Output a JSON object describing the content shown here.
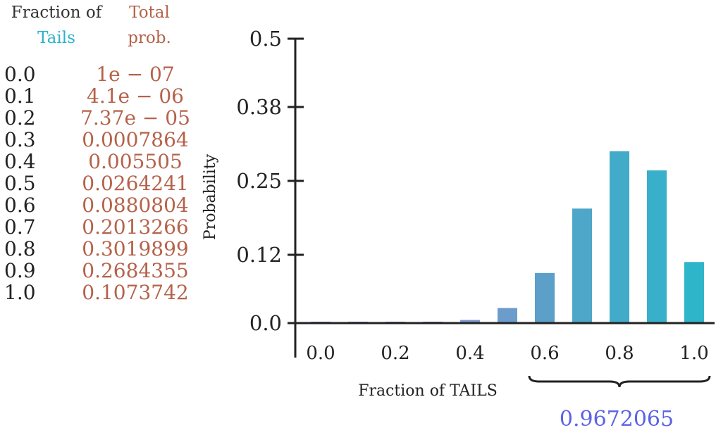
{
  "table": {
    "header_fraction": [
      "Fraction of",
      "Tails"
    ],
    "header_prob": [
      "Total",
      "prob."
    ],
    "rows": [
      {
        "fraction": "0.0",
        "prob": "1e − 07"
      },
      {
        "fraction": "0.1",
        "prob": "4.1e − 06"
      },
      {
        "fraction": "0.2",
        "prob": "7.37e − 05"
      },
      {
        "fraction": "0.3",
        "prob": "0.0007864"
      },
      {
        "fraction": "0.4",
        "prob": "0.005505"
      },
      {
        "fraction": "0.5",
        "prob": "0.0264241"
      },
      {
        "fraction": "0.6",
        "prob": "0.0880804"
      },
      {
        "fraction": "0.7",
        "prob": "0.2013266"
      },
      {
        "fraction": "0.8",
        "prob": "0.3019899"
      },
      {
        "fraction": "0.9",
        "prob": "0.2684355"
      },
      {
        "fraction": "1.0",
        "prob": "0.1073742"
      }
    ]
  },
  "chart_data": {
    "type": "bar",
    "x": [
      0.0,
      0.1,
      0.2,
      0.3,
      0.4,
      0.5,
      0.6,
      0.7,
      0.8,
      0.9,
      1.0
    ],
    "values": [
      1e-07,
      4.1e-06,
      7.37e-05,
      0.0007864,
      0.005505,
      0.0264241,
      0.0880804,
      0.2013266,
      0.3019899,
      0.2684355,
      0.1073742
    ],
    "xlabel": "Fraction of TAILS",
    "ylabel": "Probability",
    "xticks": [
      "0.0",
      "0.2",
      "0.4",
      "0.6",
      "0.8",
      "1.0"
    ],
    "yticks": [
      "0.0",
      "0.12",
      "0.25",
      "0.38",
      "0.5"
    ],
    "ylim": [
      0,
      0.5
    ],
    "bar_colors": [
      "#8c8fd8",
      "#8a90d6",
      "#8692d4",
      "#8295d2",
      "#7c98cf",
      "#6c9ccb",
      "#5c9fc8",
      "#4ea6c9",
      "#42abc9",
      "#39b0c9",
      "#2fb5c9"
    ],
    "annotation": {
      "text": "0.9672065",
      "color": "#5b62e6",
      "brace_from": 0.6,
      "brace_to": 1.0
    }
  }
}
